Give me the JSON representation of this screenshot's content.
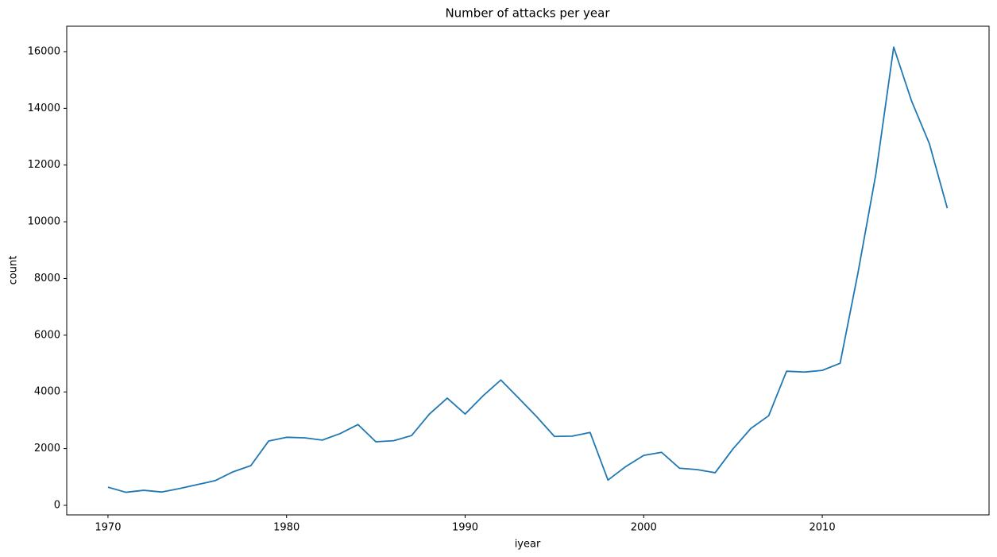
{
  "chart_data": {
    "type": "line",
    "title": "Number of attacks per year",
    "x_label": "iyear",
    "y_label": "count",
    "x": [
      1970,
      1971,
      1972,
      1973,
      1974,
      1975,
      1976,
      1977,
      1978,
      1979,
      1980,
      1981,
      1982,
      1983,
      1984,
      1985,
      1986,
      1987,
      1988,
      1989,
      1990,
      1991,
      1992,
      1993,
      1994,
      1995,
      1996,
      1997,
      1998,
      1999,
      2000,
      2001,
      2002,
      2003,
      2004,
      2005,
      2006,
      2007,
      2008,
      2009,
      2010,
      2011,
      2012,
      2013,
      2014,
      2015,
      2016,
      2017
    ],
    "series": [
      {
        "name": "count",
        "color": "#1f77b4",
        "values": [
          640,
          460,
          530,
          470,
          590,
          730,
          870,
          1180,
          1400,
          2270,
          2400,
          2380,
          2300,
          2530,
          2850,
          2240,
          2280,
          2460,
          3220,
          3780,
          3220,
          3860,
          4420,
          3780,
          3130,
          2430,
          2440,
          2570,
          890,
          1370,
          1760,
          1870,
          1310,
          1260,
          1150,
          1990,
          2710,
          3160,
          4730,
          4700,
          4760,
          5010,
          8200,
          11680,
          16160,
          14260,
          12750,
          10480
        ]
      }
    ],
    "xlim": [
      1967.69,
      2019.34
    ],
    "ylim": [
      -337,
      16896
    ],
    "xticks": [
      1970,
      1980,
      1990,
      2000,
      2010
    ],
    "yticks": [
      0,
      2000,
      4000,
      6000,
      8000,
      10000,
      12000,
      14000,
      16000
    ]
  }
}
